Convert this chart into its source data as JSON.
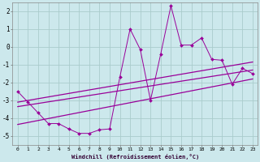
{
  "background_color": "#cce8ec",
  "grid_color": "#aacccc",
  "line_color": "#990099",
  "marker_color": "#990099",
  "xlabel": "Windchill (Refroidissement éolien,°C)",
  "xlim": [
    -0.5,
    23.5
  ],
  "ylim": [
    -5.5,
    2.5
  ],
  "yticks": [
    -5,
    -4,
    -3,
    -2,
    -1,
    0,
    1,
    2
  ],
  "xticks": [
    0,
    1,
    2,
    3,
    4,
    5,
    6,
    7,
    8,
    9,
    10,
    11,
    12,
    13,
    14,
    15,
    16,
    17,
    18,
    19,
    20,
    21,
    22,
    23
  ],
  "scatter_x": [
    0,
    1,
    2,
    3,
    4,
    5,
    6,
    7,
    8,
    9,
    10,
    11,
    12,
    13,
    14,
    15,
    16,
    17,
    18,
    19,
    20,
    21,
    22,
    23
  ],
  "scatter_y": [
    -2.5,
    -3.1,
    -3.7,
    -4.3,
    -4.3,
    -4.6,
    -4.85,
    -4.85,
    -4.65,
    -4.6,
    -1.7,
    1.0,
    -0.15,
    -3.0,
    -0.4,
    2.3,
    0.1,
    0.1,
    0.5,
    -0.7,
    -0.75,
    -2.1,
    -1.2,
    -1.5
  ],
  "regression_lines": [
    {
      "x": [
        0,
        23
      ],
      "y": [
        -3.1,
        -0.85
      ]
    },
    {
      "x": [
        0,
        23
      ],
      "y": [
        -3.35,
        -1.3
      ]
    },
    {
      "x": [
        0,
        23
      ],
      "y": [
        -4.35,
        -1.8
      ]
    }
  ]
}
